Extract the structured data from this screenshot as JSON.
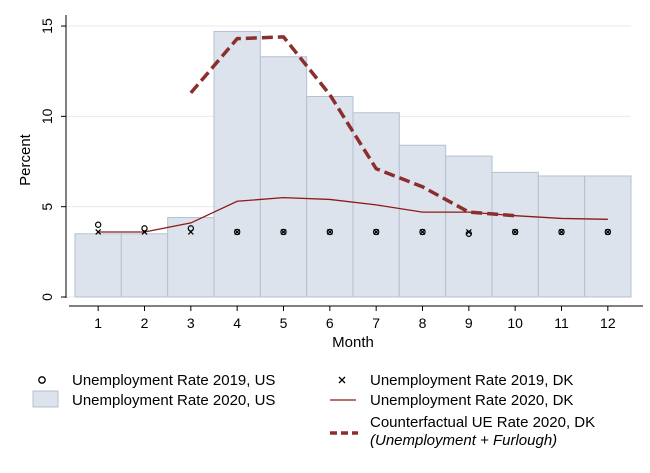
{
  "chart_data": {
    "type": "bar",
    "xlabel": "Month",
    "ylabel": "Percent",
    "categories": [
      "1",
      "2",
      "3",
      "4",
      "5",
      "6",
      "7",
      "8",
      "9",
      "10",
      "11",
      "12"
    ],
    "ylim": [
      0,
      15.5
    ],
    "yticks": [
      "0",
      "5",
      "10",
      "15"
    ],
    "grid": true,
    "legend_position": "bottom",
    "colors": {
      "bar_fill": "#dde3ec",
      "bar_stroke": "#b4c1d2",
      "line_dk": "#8b1a1a",
      "counterfactual": "#8b2e2e",
      "grid": "#eaeaea"
    },
    "series": [
      {
        "name": "Unemployment Rate 2020, US",
        "kind": "bar",
        "values": [
          3.5,
          3.5,
          4.4,
          14.7,
          13.3,
          11.1,
          10.2,
          8.4,
          7.8,
          6.9,
          6.7,
          6.7
        ]
      },
      {
        "name": "Unemployment Rate 2019, US",
        "kind": "marker-circle",
        "values": [
          4.0,
          3.8,
          3.8,
          3.6,
          3.6,
          3.6,
          3.6,
          3.6,
          3.5,
          3.6,
          3.6,
          3.6
        ]
      },
      {
        "name": "Unemployment Rate 2019, DK",
        "kind": "marker-x",
        "values": [
          3.6,
          3.6,
          3.6,
          3.6,
          3.6,
          3.6,
          3.6,
          3.6,
          3.6,
          3.6,
          3.6,
          3.6
        ]
      },
      {
        "name": "Unemployment Rate 2020, DK",
        "kind": "line",
        "values": [
          3.6,
          3.6,
          4.1,
          5.3,
          5.5,
          5.4,
          5.1,
          4.7,
          4.7,
          4.5,
          4.35,
          4.3
        ]
      },
      {
        "name": "Counterfactual UE Rate 2020, DK",
        "subtitle": "(Unemployment + Furlough)",
        "kind": "dashed-line",
        "x": [
          3,
          4,
          5,
          6,
          7,
          8,
          9,
          10
        ],
        "values": [
          11.3,
          14.3,
          14.4,
          11.2,
          7.1,
          6.1,
          4.7,
          4.5
        ]
      }
    ]
  }
}
